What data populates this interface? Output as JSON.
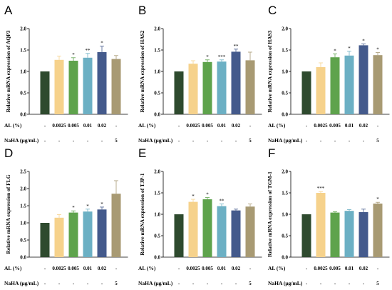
{
  "figure": {
    "row_labels": {
      "al": "AL (%)",
      "naha": "NaHA (µg/mL)"
    },
    "row_labels_alt": {
      "naha": "NaHA (μg/mL)"
    },
    "colors": [
      "#2e4a2e",
      "#f6d28c",
      "#5ea34c",
      "#6cb0c4",
      "#445a8c",
      "#a89a73"
    ],
    "al_values": [
      "-",
      "0.0025",
      "0.005",
      "0.01",
      "0.02",
      "-"
    ],
    "naha_values": [
      "-",
      "-",
      "-",
      "-",
      "-",
      "5"
    ]
  },
  "chart_data": [
    {
      "type": "bar",
      "panel_label": "A",
      "ylabel": "Relative mRNA expression of AQP3",
      "ylim": [
        0,
        2.0
      ],
      "yticks": [
        "0.0",
        "0.5",
        "1.0",
        "1.5",
        "2.0"
      ],
      "values": [
        1.0,
        1.27,
        1.25,
        1.32,
        1.45,
        1.29
      ],
      "errors": [
        0.0,
        0.09,
        0.07,
        0.1,
        0.14,
        0.08
      ],
      "significance": [
        "",
        "",
        "*",
        "**",
        "*",
        ""
      ]
    },
    {
      "type": "bar",
      "panel_label": "B",
      "ylabel": "Relative mRNA expression of HAS2",
      "ylim": [
        0,
        2.0
      ],
      "yticks": [
        "0.0",
        "0.5",
        "1.0",
        "1.5",
        "2.0"
      ],
      "values": [
        1.0,
        1.18,
        1.22,
        1.23,
        1.46,
        1.26
      ],
      "errors": [
        0.0,
        0.07,
        0.05,
        0.04,
        0.06,
        0.19
      ],
      "significance": [
        "",
        "",
        "*",
        "***",
        "**",
        ""
      ]
    },
    {
      "type": "bar",
      "panel_label": "C",
      "ylabel": "Relative mRNA expression of HAS3",
      "ylim": [
        0,
        2.0
      ],
      "yticks": [
        "0.0",
        "0.5",
        "1.0",
        "1.5",
        "2.0"
      ],
      "values": [
        1.0,
        1.1,
        1.33,
        1.37,
        1.61,
        1.38
      ],
      "errors": [
        0.0,
        0.1,
        0.08,
        0.1,
        0.03,
        0.06
      ],
      "significance": [
        "",
        "",
        "*",
        "*",
        "*",
        "*"
      ]
    },
    {
      "type": "bar",
      "panel_label": "D",
      "ylabel": "Relative mRNA expression of FLG",
      "ylim": [
        0,
        2.5
      ],
      "yticks": [
        "0.0",
        "0.5",
        "1.0",
        "1.5",
        "2.0",
        "2.5"
      ],
      "values": [
        1.0,
        1.15,
        1.3,
        1.33,
        1.39,
        1.85
      ],
      "errors": [
        0.0,
        0.09,
        0.05,
        0.07,
        0.07,
        0.38
      ],
      "significance": [
        "",
        "",
        "*",
        "*",
        "*",
        ""
      ]
    },
    {
      "type": "bar",
      "panel_label": "E",
      "ylabel": "Relative mRNA expression of TJP-1",
      "ylim": [
        0,
        2.0
      ],
      "yticks": [
        "0.0",
        "0.5",
        "1.0",
        "1.5",
        "2.0"
      ],
      "values": [
        1.0,
        1.29,
        1.35,
        1.19,
        1.09,
        1.18
      ],
      "errors": [
        0.0,
        0.06,
        0.04,
        0.05,
        0.03,
        0.06
      ],
      "significance": [
        "",
        "*",
        "*",
        "**",
        "",
        ""
      ]
    },
    {
      "type": "bar",
      "panel_label": "F",
      "ylabel": "Relative mRNA expression of TGM-1",
      "ylim": [
        0,
        2.0
      ],
      "yticks": [
        "0.0",
        "0.5",
        "1.0",
        "1.5",
        "2.0"
      ],
      "values": [
        1.0,
        1.5,
        1.04,
        1.08,
        1.05,
        1.25
      ],
      "errors": [
        0.0,
        0.03,
        0.02,
        0.03,
        0.07,
        0.03
      ],
      "significance": [
        "",
        "***",
        "",
        "",
        "",
        "*"
      ]
    }
  ]
}
